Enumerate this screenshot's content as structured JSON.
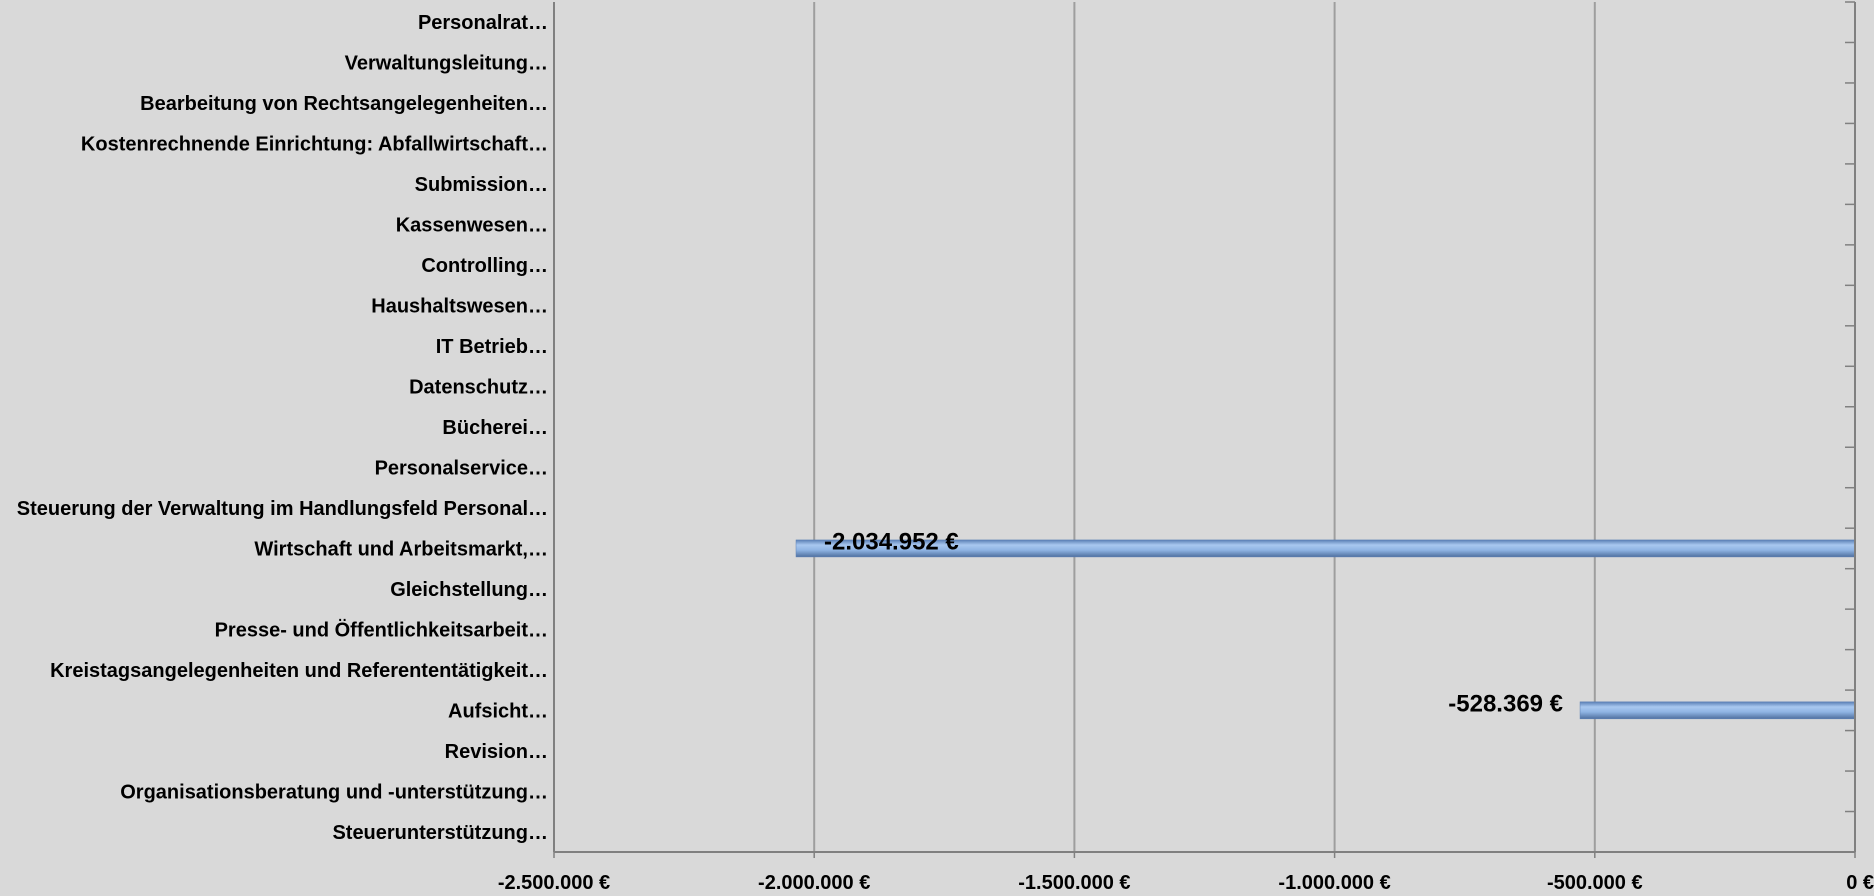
{
  "chart_data": {
    "type": "bar",
    "orientation": "horizontal",
    "categories": [
      "Personalrat…",
      "Verwaltungsleitung…",
      "Bearbeitung von Rechtsangelegenheiten…",
      "Kostenrechnende Einrichtung: Abfallwirtschaft…",
      "Submission…",
      "Kassenwesen…",
      "Controlling…",
      "Haushaltswesen…",
      "IT Betrieb…",
      "Datenschutz…",
      "Bücherei…",
      "Personalservice…",
      "Steuerung der Verwaltung im Handlungsfeld Personal…",
      "Wirtschaft und Arbeitsmarkt,…",
      "Gleichstellung…",
      "Presse- und Öffentlichkeitsarbeit…",
      "Kreistagsangelegenheiten und Referententätigkeit…",
      "Aufsicht…",
      "Revision…",
      "Organisationsberatung und -unterstützung…",
      "Steuerunterstützung…"
    ],
    "values": [
      null,
      null,
      null,
      null,
      null,
      null,
      null,
      null,
      null,
      null,
      null,
      null,
      null,
      -2034952,
      null,
      null,
      null,
      -528369,
      null,
      null,
      null
    ],
    "data_labels": [
      null,
      null,
      null,
      null,
      null,
      null,
      null,
      null,
      null,
      null,
      null,
      null,
      null,
      "-2.034.952 €",
      null,
      null,
      null,
      "-528.369 €",
      null,
      null,
      null
    ],
    "xlim": [
      -2500000,
      0
    ],
    "xticks": [
      -2500000,
      -2000000,
      -1500000,
      -1000000,
      -500000,
      0
    ],
    "xtick_labels": [
      "-2.500.000 €",
      "-2.000.000 €",
      "-1.500.000 €",
      "-1.000.000 €",
      "-500.000 €",
      "0 €"
    ],
    "title": "",
    "xlabel": "",
    "ylabel": "",
    "grid": "vertical",
    "legend": "none",
    "colors": {
      "background": "#d9d9d9",
      "gridline": "#9e9e9e",
      "axis": "#808080",
      "bar_light": "#a9c8f0",
      "bar_mid": "#8fb4e3",
      "bar_dark": "#5a7fb5",
      "text": "#000000"
    }
  }
}
